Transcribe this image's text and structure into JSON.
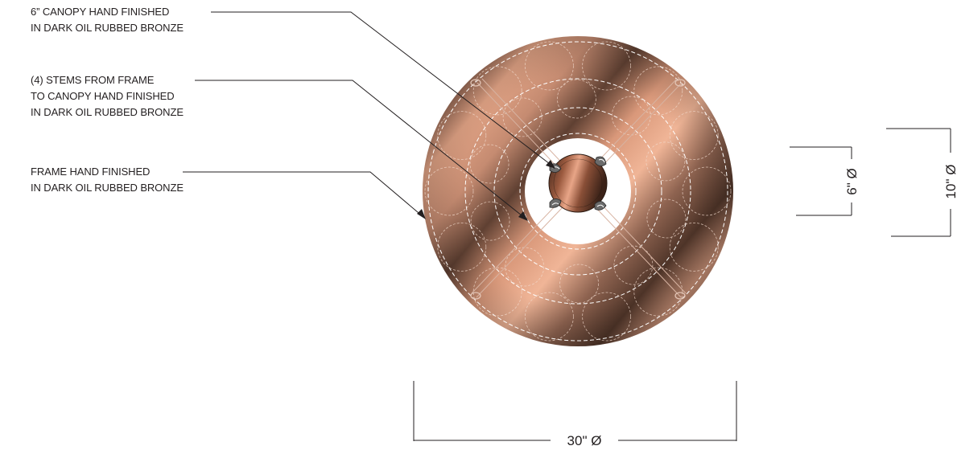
{
  "callouts": {
    "canopy": {
      "line1": "6” CANOPY HAND FINISHED",
      "line2": "IN DARK OIL RUBBED BRONZE"
    },
    "stems": {
      "line1": "(4) STEMS FROM FRAME",
      "line2": "TO CANOPY HAND FINISHED",
      "line3": "IN DARK OIL RUBBED BRONZE"
    },
    "frame": {
      "line1": "FRAME HAND FINISHED",
      "line2": "IN DARK OIL RUBBED BRONZE"
    }
  },
  "dimensions": {
    "diameter_30": "30\" Ø",
    "diameter_6": "6\" Ø",
    "diameter_10": "10\" Ø"
  },
  "colors": {
    "line": "#231f20",
    "bronze_light": "#e8a587",
    "bronze_dark": "#4a3226",
    "background": "#ffffff"
  }
}
